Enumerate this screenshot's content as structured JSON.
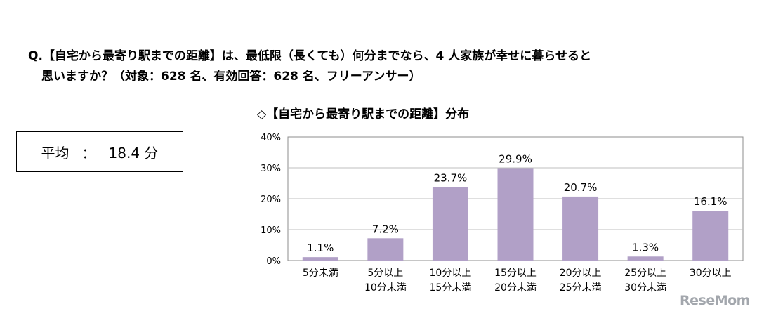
{
  "question": {
    "line1": "Q.【自宅から最寄り駅までの距離】は、最低限（長くても）何分までなら、4 人家族が幸せに暮らせると",
    "line2": "思いますか？（対象：628 名、有効回答：628 名、フリーアンサー）"
  },
  "average": {
    "label": "平均",
    "separator": "：",
    "value": "18.4 分"
  },
  "watermark": "ReseMom",
  "colors": {
    "bar": "#b1a0c7",
    "axis": "#8c8c8c",
    "grid": "#bfbfbf"
  },
  "chart_data": {
    "type": "bar",
    "title": "◇【自宅から最寄り駅までの距離】分布",
    "categories": [
      [
        "5分未満"
      ],
      [
        "5分以上",
        "10分未満"
      ],
      [
        "10分以上",
        "15分未満"
      ],
      [
        "15分以上",
        "20分未満"
      ],
      [
        "20分以上",
        "25分未満"
      ],
      [
        "25分以上",
        "30分未満"
      ],
      [
        "30分以上"
      ]
    ],
    "values": [
      1.1,
      7.2,
      23.7,
      29.9,
      20.7,
      1.3,
      16.1
    ],
    "data_labels": [
      "1.1%",
      "7.2%",
      "23.7%",
      "29.9%",
      "20.7%",
      "1.3%",
      "16.1%"
    ],
    "yticks": [
      0,
      10,
      20,
      30,
      40
    ],
    "ytick_labels": [
      "0%",
      "10%",
      "20%",
      "30%",
      "40%"
    ],
    "ylim": [
      0,
      40
    ],
    "grid": true
  }
}
